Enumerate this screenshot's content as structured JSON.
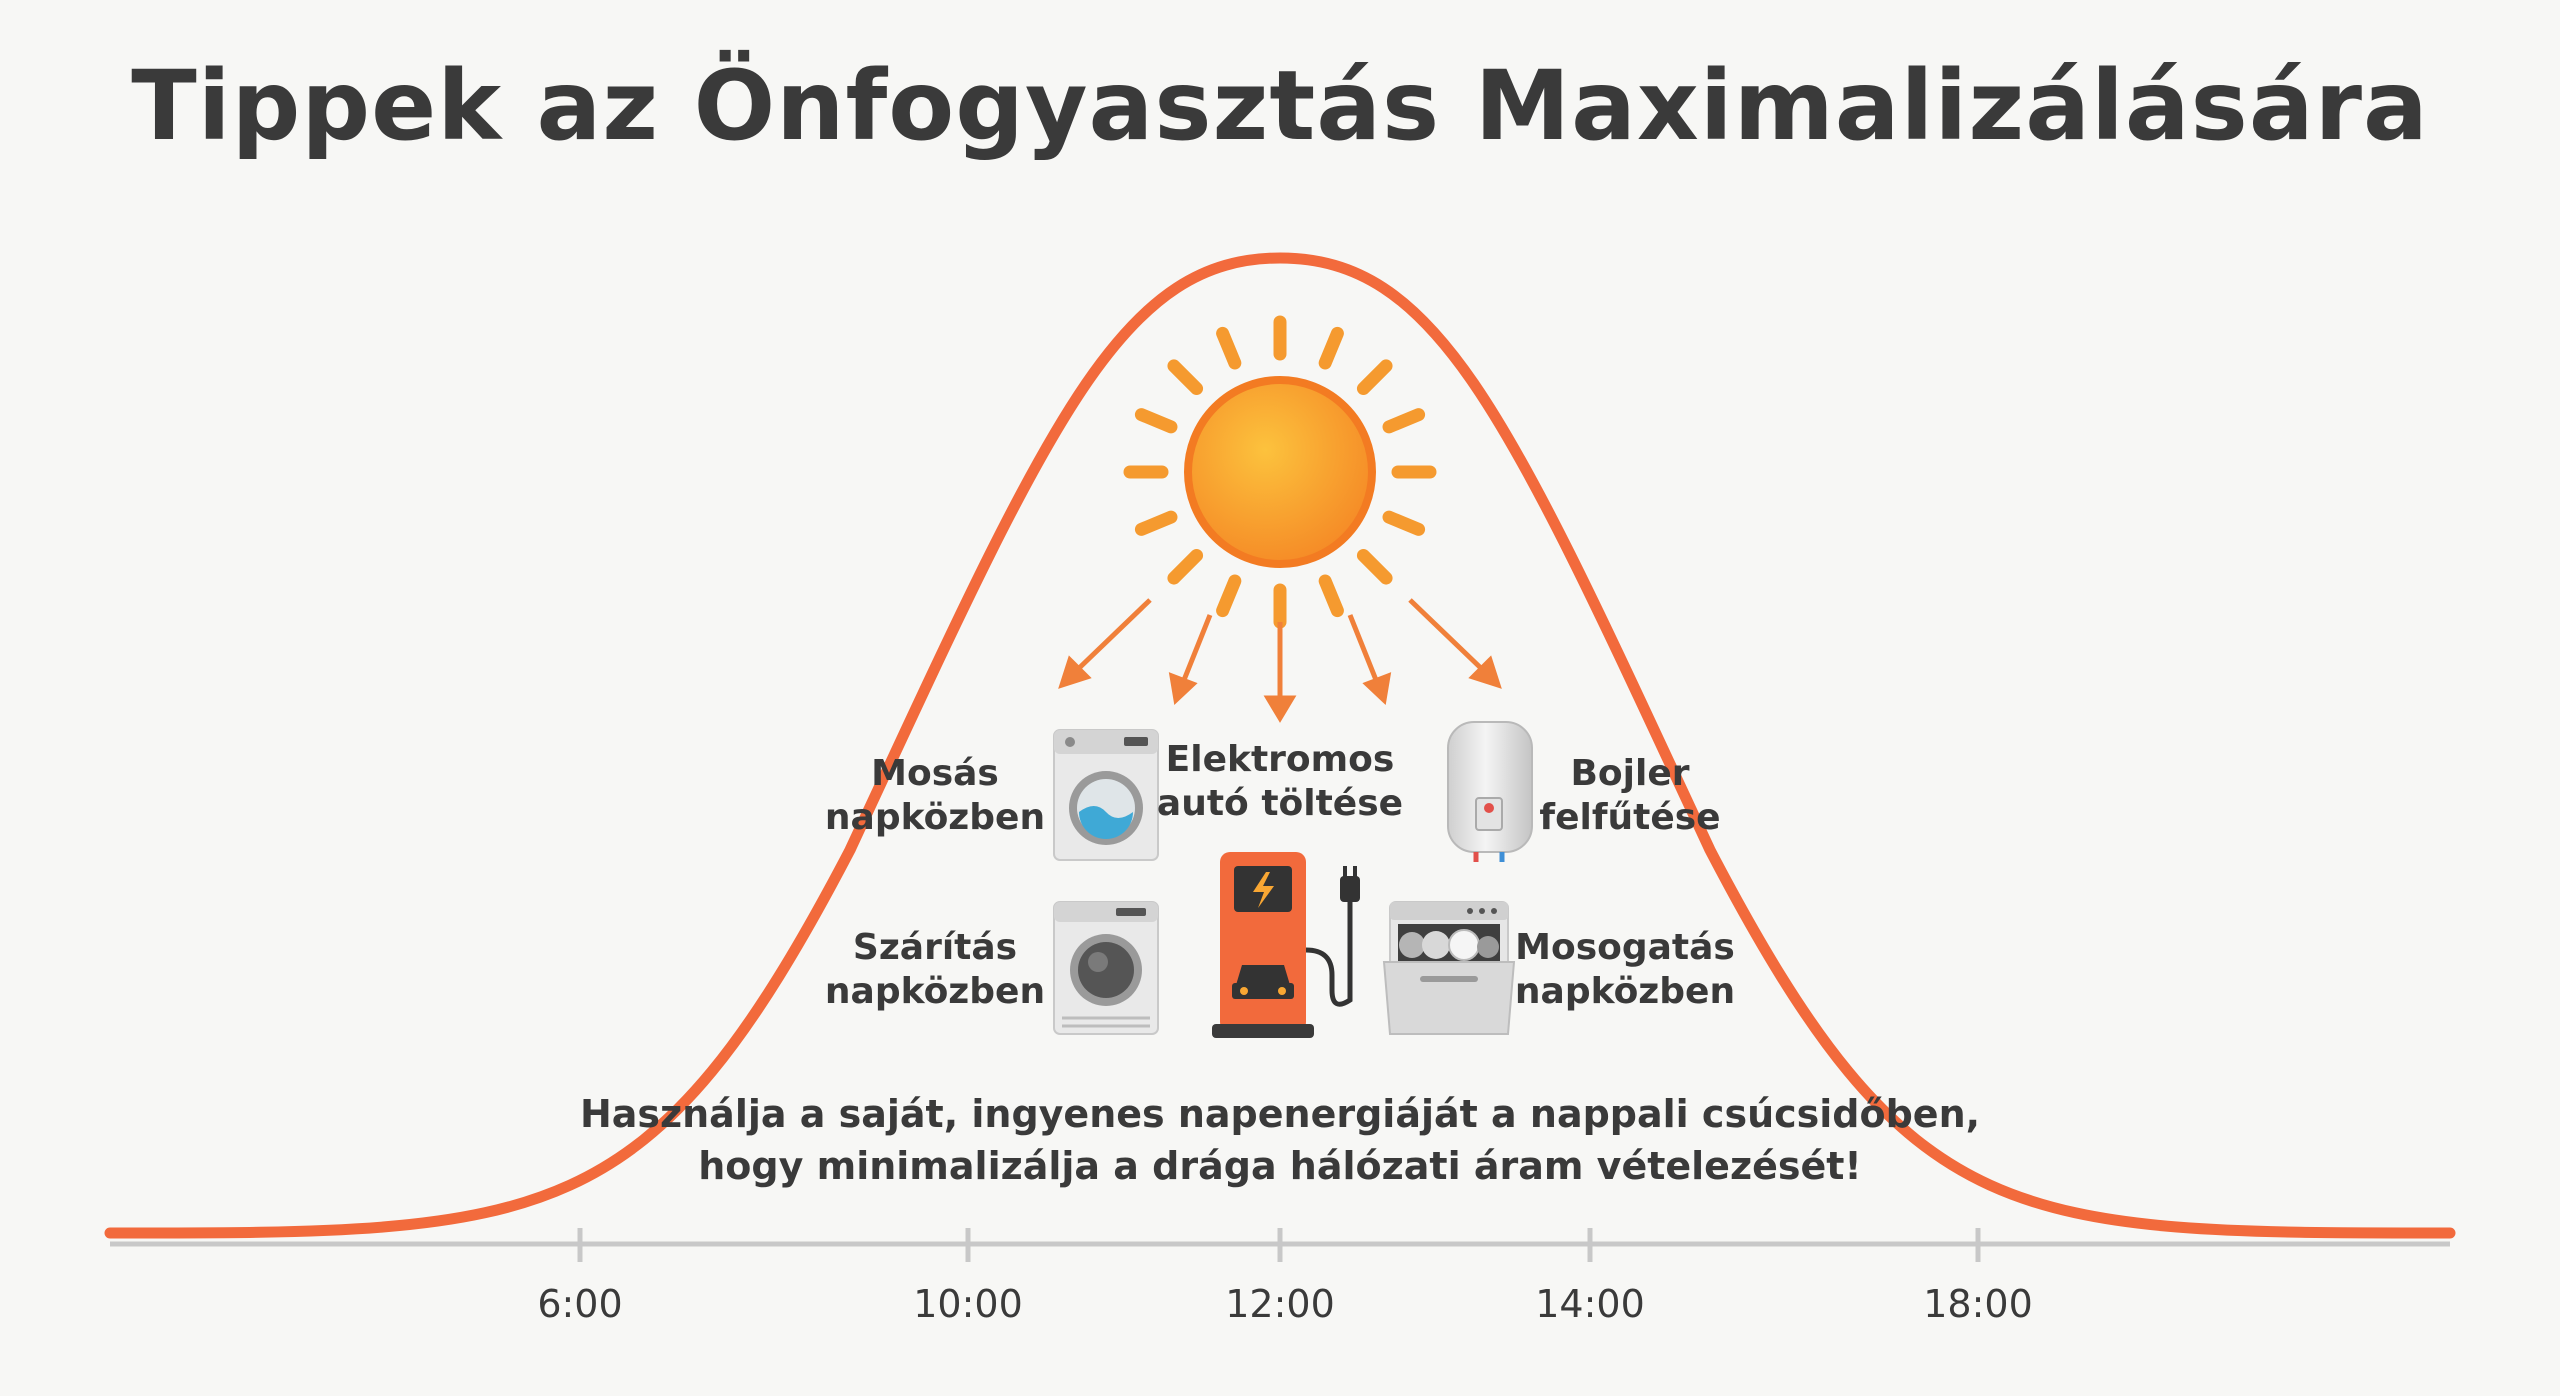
{
  "title": "Tippek az Önfogyasztás Maximalizálására",
  "tips": [
    {
      "id": "washing",
      "line1": "Mosás",
      "line2": "napközben"
    },
    {
      "id": "ev",
      "line1": "Elektromos",
      "line2": "autó töltése"
    },
    {
      "id": "boiler",
      "line1": "Bojler",
      "line2": "felfűtése"
    },
    {
      "id": "drying",
      "line1": "Szárítás",
      "line2": "napközben"
    },
    {
      "id": "dishwasher",
      "line1": "Mosogatás",
      "line2": "napközben"
    }
  ],
  "message": {
    "line1": "Használja a saját, ingyenes napenergiáját a nappali csúcsidőben,",
    "line2": "hogy minimalizálja a drága hálózati áram vételezését!"
  },
  "axis": {
    "ticks": [
      "6:00",
      "10:00",
      "12:00",
      "14:00",
      "18:00"
    ]
  },
  "colors": {
    "curve": "#f26a3c",
    "sun_core": "#f9a733",
    "sun_ray": "#f59a2f",
    "arrow": "#f0803a",
    "text": "#3a3a3a",
    "axis": "#c8c8c8"
  },
  "icons": [
    "sun-icon",
    "washing-machine-icon",
    "dryer-icon",
    "ev-charger-icon",
    "water-heater-icon",
    "dishwasher-icon"
  ]
}
